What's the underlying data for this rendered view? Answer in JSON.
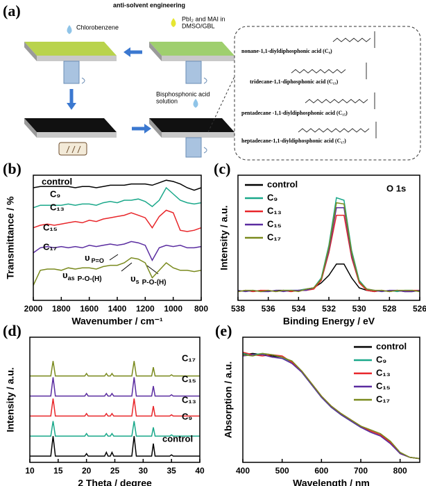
{
  "schematic": {
    "label": "(a)",
    "title": "anti-solvent engineering",
    "antisolvent": "Chlorobenzene",
    "precursor": [
      "PbI₂ and MAI in",
      "DMSO/GBL"
    ],
    "additive": [
      "Bisphosphonic acid",
      "solution"
    ],
    "molecules": [
      "nonane-1,1-diyldiphosphonic acid (C₉)",
      "tridecane-1,1-diphosphonic acid (C₁₃)",
      "pentadecane -1,1-diyldiphosphonic acid (C₁₅)",
      "heptadecane-1,1-diyldiphosphonic acid (C₁₇)"
    ]
  },
  "chart_data": [
    {
      "type": "line",
      "label": "(b)",
      "xlabel": "Wavenumber / cm⁻¹",
      "ylabel": "Transmittance / %",
      "xlim": [
        2000,
        800
      ],
      "xticks": [
        2000,
        1800,
        1600,
        1400,
        1200,
        1000,
        800
      ],
      "ylim": [
        0,
        100
      ],
      "legend": "inline",
      "x": [
        2000,
        1950,
        1900,
        1850,
        1800,
        1750,
        1700,
        1650,
        1600,
        1550,
        1500,
        1450,
        1400,
        1350,
        1300,
        1250,
        1200,
        1150,
        1100,
        1050,
        1000,
        950,
        900,
        850,
        800
      ],
      "series": [
        {
          "name": "control",
          "color": "#000000",
          "values": [
            90,
            91,
            91,
            91,
            91,
            91,
            90,
            91,
            91,
            90,
            91,
            92,
            92,
            92,
            93,
            93,
            93,
            92,
            94,
            96,
            95,
            93,
            90,
            88,
            90
          ]
        },
        {
          "name": "C₉",
          "color": "#1aa88a",
          "values": [
            74,
            76,
            76,
            76,
            76,
            77,
            76,
            77,
            77,
            76,
            78,
            79,
            78,
            80,
            80,
            81,
            79,
            75,
            80,
            90,
            85,
            80,
            78,
            77,
            78
          ]
        },
        {
          "name": "C₁₃",
          "color": "#e8262a",
          "values": [
            58,
            60,
            61,
            60,
            61,
            62,
            63,
            62,
            64,
            63,
            65,
            66,
            67,
            68,
            70,
            68,
            66,
            58,
            67,
            72,
            70,
            56,
            55,
            56,
            58
          ]
        },
        {
          "name": "C₁₅",
          "color": "#5a2ca0",
          "values": [
            38,
            42,
            43,
            42,
            43,
            42,
            43,
            42,
            44,
            43,
            44,
            45,
            44,
            45,
            47,
            46,
            44,
            32,
            42,
            44,
            43,
            44,
            42,
            42,
            43
          ]
        },
        {
          "name": "C₁₇",
          "color": "#7a8a1e",
          "values": [
            12,
            24,
            25,
            25,
            24,
            26,
            25,
            26,
            26,
            25,
            27,
            28,
            28,
            30,
            34,
            33,
            30,
            18,
            24,
            30,
            26,
            24,
            24,
            23,
            24
          ]
        }
      ],
      "annotations": [
        {
          "symbol": "υ",
          "subscript": "P=O"
        },
        {
          "symbol": "υ",
          "subscript": "as",
          "group": "P-O-(H)"
        },
        {
          "symbol": "υ",
          "subscript": "s",
          "group": "P-O-(H)"
        }
      ]
    },
    {
      "type": "line",
      "label": "(c)",
      "xlabel": "Binding Energy / eV",
      "ylabel": "Intensity / a.u.",
      "xlim": [
        538,
        526
      ],
      "xticks": [
        538,
        536,
        534,
        532,
        530,
        528,
        526
      ],
      "ylim": [
        0,
        100
      ],
      "legend": "upper left",
      "annotation": "O 1s",
      "x": [
        538,
        537.5,
        537,
        536.5,
        536,
        535.5,
        535,
        534.5,
        534,
        533.5,
        533,
        532.5,
        532,
        531.5,
        531,
        530.5,
        530,
        529.5,
        529,
        528.5,
        528,
        527.5,
        527,
        526.5,
        526
      ],
      "series": [
        {
          "name": "control",
          "color": "#000000",
          "values": [
            7,
            8,
            7,
            8,
            7,
            8,
            8,
            7,
            8,
            9,
            10,
            14,
            20,
            29,
            29,
            18,
            10,
            8,
            7,
            8,
            7,
            8,
            7,
            7,
            8
          ]
        },
        {
          "name": "C₉",
          "color": "#1aa88a",
          "values": [
            8,
            7,
            8,
            7,
            8,
            7,
            8,
            8,
            8,
            9,
            10,
            18,
            44,
            82,
            80,
            40,
            16,
            9,
            8,
            7,
            8,
            7,
            8,
            8,
            7
          ]
        },
        {
          "name": "C₁₃",
          "color": "#e8262a",
          "values": [
            7,
            8,
            7,
            8,
            8,
            7,
            8,
            7,
            8,
            8,
            9,
            16,
            38,
            68,
            68,
            34,
            14,
            8,
            7,
            8,
            7,
            8,
            7,
            8,
            8
          ]
        },
        {
          "name": "C₁₅",
          "color": "#5a2ca0",
          "values": [
            8,
            7,
            8,
            7,
            7,
            8,
            7,
            8,
            8,
            8,
            10,
            17,
            40,
            74,
            74,
            36,
            15,
            9,
            8,
            7,
            8,
            8,
            7,
            7,
            8
          ]
        },
        {
          "name": "C₁₇",
          "color": "#7a8a1e",
          "values": [
            7,
            8,
            8,
            7,
            8,
            7,
            8,
            8,
            7,
            9,
            10,
            17,
            42,
            78,
            77,
            38,
            15,
            9,
            8,
            8,
            7,
            8,
            8,
            8,
            7
          ]
        }
      ]
    },
    {
      "type": "line",
      "label": "(d)",
      "xlabel": "2 Theta / degree",
      "ylabel": "Intensity / a.u.",
      "xlim": [
        10,
        40
      ],
      "xticks": [
        10,
        15,
        20,
        25,
        30,
        35,
        40
      ],
      "ylim": [
        0,
        100
      ],
      "legend": "inline",
      "x": [
        10,
        13.7,
        14.1,
        14.5,
        19.7,
        20,
        20.3,
        23.2,
        23.5,
        23.8,
        24.2,
        24.5,
        24.8,
        28,
        28.4,
        28.8,
        31.5,
        31.8,
        32.1,
        34.7,
        35,
        35.3,
        40
      ],
      "series": [
        {
          "name": "control",
          "color": "#000000",
          "values": [
            5,
            5,
            21,
            5,
            5,
            7,
            5,
            5,
            8,
            5,
            5,
            8,
            5,
            5,
            21,
            5,
            5,
            15,
            5,
            5,
            6,
            5,
            5
          ]
        },
        {
          "name": "C₉",
          "color": "#1aa88a",
          "values": [
            21,
            21,
            33,
            21,
            21,
            23,
            21,
            21,
            23,
            21,
            21,
            23,
            21,
            21,
            33,
            21,
            21,
            28,
            21,
            21,
            22,
            21,
            21
          ]
        },
        {
          "name": "C₁₃",
          "color": "#e8262a",
          "values": [
            37,
            37,
            51,
            37,
            37,
            39,
            37,
            37,
            39,
            37,
            37,
            39,
            37,
            37,
            51,
            37,
            37,
            45,
            37,
            37,
            38,
            37,
            37
          ]
        },
        {
          "name": "C₁₅",
          "color": "#5a2ca0",
          "values": [
            53,
            53,
            68,
            53,
            53,
            55,
            53,
            53,
            55,
            53,
            53,
            55,
            53,
            53,
            68,
            53,
            53,
            61,
            53,
            53,
            54,
            53,
            53
          ]
        },
        {
          "name": "C₁₇",
          "color": "#7a8a1e",
          "values": [
            69,
            69,
            81,
            69,
            69,
            71,
            69,
            69,
            71,
            69,
            69,
            71,
            69,
            69,
            81,
            69,
            69,
            76,
            69,
            69,
            70,
            69,
            69
          ]
        }
      ]
    },
    {
      "type": "line",
      "label": "(e)",
      "xlabel": "Wavelength / nm",
      "ylabel": "Absorption / a.u.",
      "xlim": [
        400,
        850
      ],
      "xticks": [
        400,
        500,
        600,
        700,
        800
      ],
      "ylim": [
        0,
        100
      ],
      "legend": "upper right",
      "x": [
        400,
        425,
        450,
        475,
        500,
        525,
        550,
        575,
        600,
        625,
        650,
        675,
        700,
        725,
        750,
        775,
        800,
        825,
        850
      ],
      "series": [
        {
          "name": "control",
          "color": "#000000",
          "values": [
            86,
            87,
            86,
            85,
            84,
            80,
            72,
            62,
            52,
            44,
            38,
            33,
            28,
            25,
            22,
            16,
            7,
            4,
            3
          ]
        },
        {
          "name": "C₉",
          "color": "#1aa88a",
          "values": [
            87,
            86,
            87,
            86,
            84,
            80,
            72,
            62,
            52,
            44,
            38,
            33,
            28,
            25,
            22,
            16,
            7,
            4,
            3
          ]
        },
        {
          "name": "C₁₃",
          "color": "#e8262a",
          "values": [
            88,
            86,
            85,
            86,
            85,
            80,
            73,
            63,
            53,
            45,
            39,
            34,
            29,
            25,
            22,
            16,
            7,
            4,
            3
          ]
        },
        {
          "name": "C₁₅",
          "color": "#5a2ca0",
          "values": [
            85,
            86,
            86,
            84,
            83,
            79,
            72,
            62,
            52,
            44,
            38,
            33,
            28,
            24,
            21,
            15,
            7,
            4,
            3
          ]
        },
        {
          "name": "C₁₇",
          "color": "#7a8a1e",
          "values": [
            86,
            85,
            87,
            86,
            84,
            81,
            73,
            63,
            53,
            45,
            39,
            34,
            29,
            26,
            23,
            17,
            8,
            4,
            3
          ]
        }
      ]
    }
  ]
}
